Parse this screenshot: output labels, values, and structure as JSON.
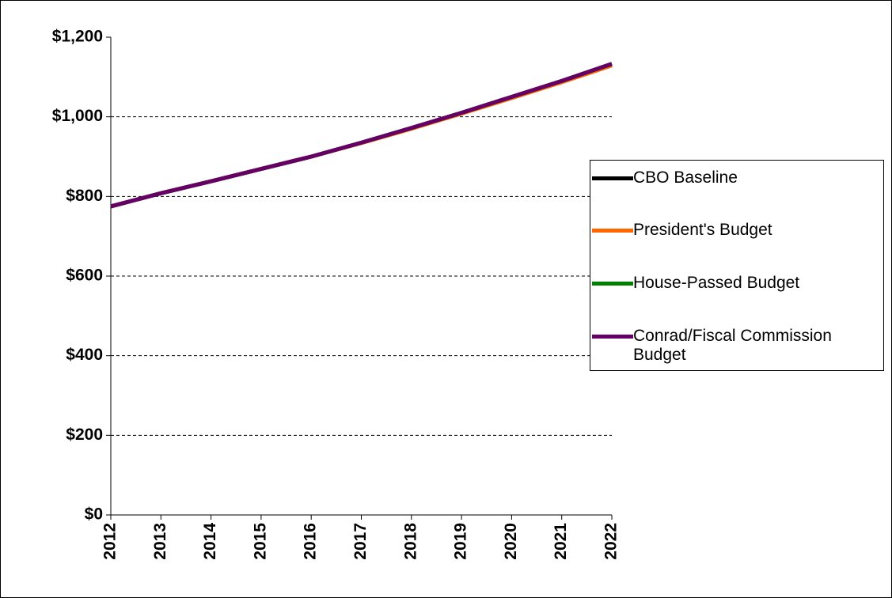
{
  "chart_data": {
    "type": "line",
    "categories": [
      "2012",
      "2013",
      "2014",
      "2015",
      "2016",
      "2017",
      "2018",
      "2019",
      "2020",
      "2021",
      "2022"
    ],
    "series": [
      {
        "name": "CBO Baseline",
        "color": "#000000",
        "values": [
          775,
          808,
          838,
          869,
          900,
          935,
          972,
          1010,
          1050,
          1090,
          1133
        ]
      },
      {
        "name": "President's Budget",
        "color": "#ff6600",
        "values": [
          775,
          808,
          838,
          869,
          900,
          934,
          970,
          1008,
          1047,
          1087,
          1129
        ]
      },
      {
        "name": "House-Passed Budget",
        "color": "#008000",
        "values": [
          775,
          808,
          838,
          869,
          900,
          935,
          972,
          1010,
          1050,
          1090,
          1133
        ]
      },
      {
        "name": "Conrad/Fiscal Commission Budget",
        "color": "#660066",
        "values": [
          775,
          808,
          838,
          869,
          900,
          935,
          972,
          1010,
          1050,
          1090,
          1133
        ]
      }
    ],
    "ylim": [
      0,
      1200
    ],
    "yticks": [
      {
        "value": 0,
        "label": "$0"
      },
      {
        "value": 200,
        "label": "$200"
      },
      {
        "value": 400,
        "label": "$400"
      },
      {
        "value": 600,
        "label": "$600"
      },
      {
        "value": 800,
        "label": "$800"
      },
      {
        "value": 1000,
        "label": "$1,000"
      },
      {
        "value": 1200,
        "label": "$1,200"
      }
    ],
    "grid": true,
    "legend": "right"
  }
}
